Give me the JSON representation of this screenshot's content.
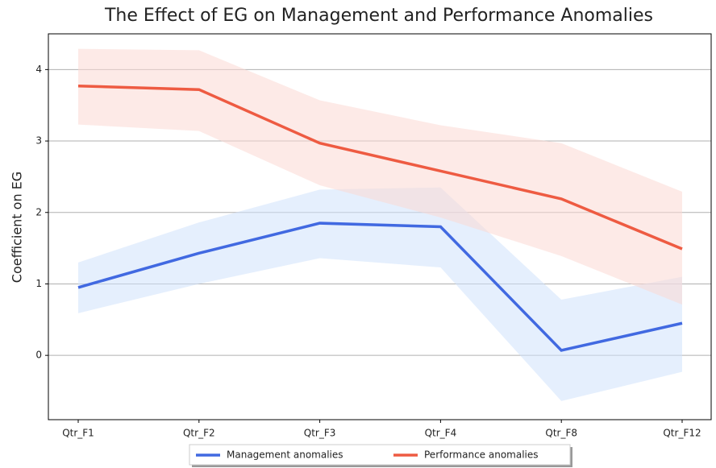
{
  "chart_data": {
    "type": "line",
    "title": "The Effect of EG on Management and Performance Anomalies",
    "y_label": "Coefficient on EG",
    "categories": [
      "Qtr_F1",
      "Qtr_F2",
      "Qtr_F3",
      "Qtr_F4",
      "Qtr_F8",
      "Qtr_F12"
    ],
    "series": [
      {
        "name": "Management anomalies",
        "color": "#4169e1",
        "band_color": "#cfe2fb",
        "values": [
          0.95,
          1.43,
          1.85,
          1.8,
          0.07,
          0.45
        ],
        "lower": [
          0.59,
          1.0,
          1.36,
          1.23,
          -0.64,
          -0.23
        ],
        "upper": [
          1.3,
          1.86,
          2.32,
          2.35,
          0.78,
          1.1
        ]
      },
      {
        "name": "Performance anomalies",
        "color": "#ee5b42",
        "band_color": "#fbd9d3",
        "values": [
          3.77,
          3.72,
          2.97,
          2.58,
          2.19,
          1.49
        ],
        "lower": [
          3.23,
          3.14,
          2.38,
          1.93,
          1.39,
          0.71
        ],
        "upper": [
          4.29,
          4.27,
          3.57,
          3.22,
          2.97,
          2.29
        ]
      }
    ],
    "ylim": [
      -0.9,
      4.5
    ],
    "yticks": [
      0,
      1,
      2,
      3,
      4
    ],
    "grid": true,
    "legend": "bottom"
  }
}
